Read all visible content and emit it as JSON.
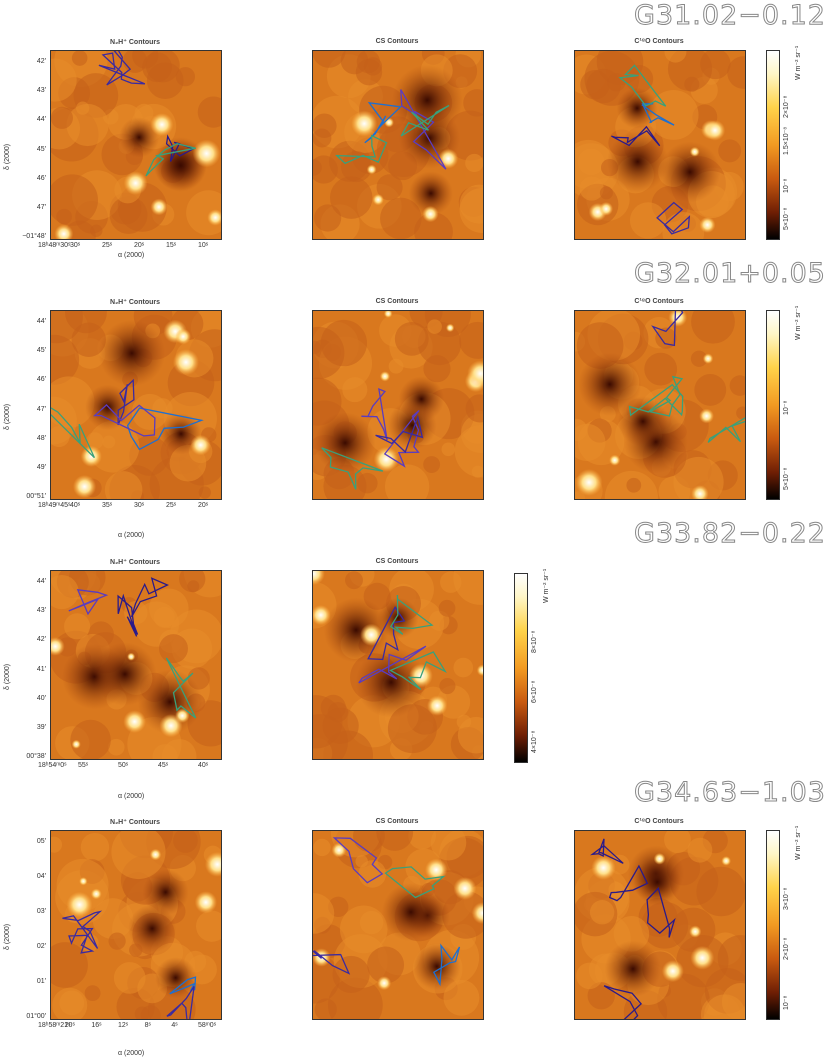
{
  "rows": [
    {
      "title": "G31.02−0.12",
      "panels": [
        "N₂H⁺ Contours",
        "CS Contours",
        "C¹⁸O Contours"
      ],
      "yticks": [
        "42′",
        "43′",
        "44′",
        "45′",
        "46′",
        "47′",
        "−01°48′"
      ],
      "xticks": [
        "18ʰ48ᵐ30ˢ",
        "30ˢ",
        "25ˢ",
        "20ˢ",
        "15ˢ",
        "10ˢ"
      ],
      "colorbar": [
        "5×10⁻⁸",
        "10⁻⁸",
        "1.5×10⁻⁸",
        "2×10⁻⁸",
        "W m⁻² sr⁻¹"
      ]
    },
    {
      "title": "G32.01+0.05",
      "panels": [
        "N₂H⁺ Contours",
        "CS Contours",
        "C¹⁸O Contours"
      ],
      "yticks": [
        "44′",
        "45′",
        "46′",
        "47′",
        "48′",
        "49′",
        "00°51′"
      ],
      "xticks": [
        "18ʰ49ᵐ45ˢ",
        "40ˢ",
        "35ˢ",
        "30ˢ",
        "25ˢ",
        "20ˢ"
      ],
      "colorbar": [
        "5×10⁻⁸",
        "10⁻⁸",
        "W m⁻² sr⁻¹"
      ]
    },
    {
      "title": "G33.82−0.22",
      "panels": [
        "N₂H⁺ Contours",
        "CS Contours"
      ],
      "yticks": [
        "44′",
        "43′",
        "42′",
        "41′",
        "40′",
        "39′",
        "00°38′"
      ],
      "xticks": [
        "18ʰ54ᵐ0ˢ",
        "55ˢ",
        "50ˢ",
        "45ˢ",
        "40ˢ"
      ],
      "colorbar": [
        "4×10⁻⁸",
        "6×10⁻⁸",
        "8×10⁻⁸",
        "W m⁻² sr⁻¹"
      ]
    },
    {
      "title": "G34.63−1.03",
      "panels": [
        "N₂H⁺ Contours",
        "CS Contours",
        "C¹⁸O Contours"
      ],
      "yticks": [
        "05′",
        "04′",
        "03′",
        "02′",
        "01′",
        "01°00′"
      ],
      "xticks": [
        "18ʰ58ᵐ21ˢ",
        "20ˢ",
        "16ˢ",
        "12ˢ",
        "8ˢ",
        "4ˢ",
        "58ᵐ0ˢ"
      ],
      "colorbar": [
        "10⁻⁸",
        "2×10⁻⁸",
        "3×10⁻⁸",
        "W m⁻² sr⁻¹"
      ]
    }
  ],
  "axis": {
    "y": "δ (2000)",
    "x": "α (2000)"
  }
}
